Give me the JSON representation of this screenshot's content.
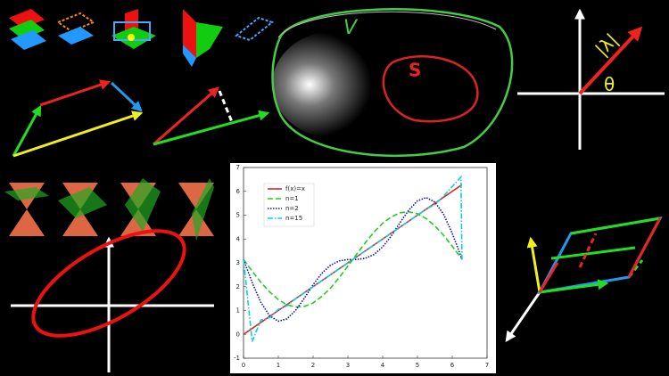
{
  "chart_data": {
    "type": "line",
    "x": [
      0,
      0.25,
      0.5,
      0.75,
      1.0,
      1.25,
      1.5,
      1.75,
      2.0,
      2.25,
      2.5,
      2.75,
      3.0,
      3.25,
      3.5,
      3.75,
      4.0,
      4.25,
      4.5,
      4.75,
      5.0,
      5.25,
      5.5,
      5.75,
      6.0,
      6.25,
      6.28
    ],
    "series": [
      {
        "name": "f(x)=x",
        "color": "#d62728",
        "dash": "solid",
        "values": [
          0,
          0.25,
          0.5,
          0.75,
          1.0,
          1.25,
          1.5,
          1.75,
          2.0,
          2.25,
          2.5,
          2.75,
          3.0,
          3.25,
          3.5,
          3.75,
          4.0,
          4.25,
          4.5,
          4.75,
          5.0,
          5.25,
          5.5,
          5.75,
          6.0,
          6.25,
          6.28
        ]
      },
      {
        "name": "n=1",
        "color": "#22cc22",
        "dash": "dashed",
        "values": [
          3.14,
          2.65,
          2.18,
          1.78,
          1.46,
          1.24,
          1.15,
          1.17,
          1.32,
          1.59,
          1.94,
          2.38,
          2.86,
          3.36,
          3.84,
          4.29,
          4.66,
          4.93,
          5.1,
          5.14,
          5.06,
          4.86,
          4.55,
          4.16,
          3.7,
          3.21,
          3.14
        ]
      },
      {
        "name": "n=2",
        "color": "#1010aa",
        "dash": "dotted",
        "values": [
          3.14,
          2.17,
          1.34,
          0.78,
          0.55,
          0.65,
          1.01,
          1.52,
          2.08,
          2.56,
          2.9,
          3.08,
          3.14,
          3.14,
          3.19,
          3.35,
          3.67,
          4.13,
          4.69,
          5.21,
          5.6,
          5.74,
          5.55,
          5.04,
          4.24,
          3.28,
          3.14
        ]
      },
      {
        "name": "n=15",
        "color": "#11ccdd",
        "dash": "dashdot",
        "values": [
          3.14,
          -0.3,
          0.6,
          0.7,
          1.05,
          1.2,
          1.5,
          1.75,
          2.0,
          2.25,
          2.5,
          2.75,
          3.0,
          3.25,
          3.5,
          3.75,
          4.0,
          4.25,
          4.5,
          4.75,
          5.0,
          5.25,
          5.45,
          5.8,
          6.2,
          6.6,
          3.14
        ]
      }
    ],
    "xlim": [
      0,
      7
    ],
    "ylim": [
      -1,
      7
    ],
    "xticks": [
      0,
      1,
      2,
      3,
      4,
      5,
      6,
      7
    ],
    "yticks": [
      -1,
      0,
      1,
      2,
      3,
      4,
      5,
      6,
      7
    ]
  },
  "labels": {
    "v": "V",
    "s": "S",
    "lambda": "|λ|",
    "theta": "θ"
  }
}
